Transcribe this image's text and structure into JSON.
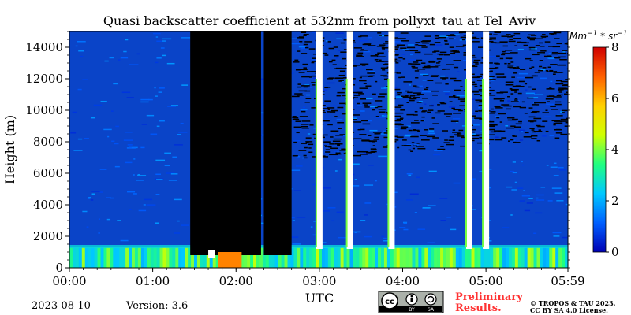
{
  "chart_data": {
    "type": "heatmap",
    "title": "Quasi backscatter coefficient at 532nm from pollyxt_tau at Tel_Aviv",
    "xlabel": "UTC",
    "ylabel": "Height (m)",
    "x_ticks": [
      "00:00",
      "01:00",
      "02:00",
      "03:00",
      "04:00",
      "05:00",
      "05:59"
    ],
    "x_range": [
      "00:00",
      "05:59"
    ],
    "y_ticks": [
      0,
      2000,
      4000,
      6000,
      8000,
      10000,
      12000,
      14000
    ],
    "ylim": [
      0,
      15000
    ],
    "colorbar": {
      "unit": "Mm^-1 * sr^-1",
      "ticks": [
        0,
        2,
        4,
        6,
        8
      ],
      "range": [
        0,
        8
      ],
      "colors": [
        "#0000b4",
        "#0060ff",
        "#00c8ff",
        "#20ff80",
        "#d0ff00",
        "#ffd000",
        "#ff6000",
        "#d00000"
      ]
    },
    "background_value": 1.0,
    "boundary_layer_top_m": 1300,
    "no_data_intervals": [
      {
        "start": "01:27",
        "end": "02:18",
        "note": "clouds/black"
      },
      {
        "start": "02:20",
        "end": "02:40",
        "note": "black"
      }
    ],
    "cloud_columns": [
      {
        "time": "03:00",
        "note": "white column"
      },
      {
        "time": "03:22",
        "note": "white column"
      },
      {
        "time": "03:52",
        "note": "white column"
      },
      {
        "time": "04:48",
        "note": "white column"
      },
      {
        "time": "05:00",
        "note": "white column"
      }
    ]
  },
  "footer": {
    "date": "2023-08-10",
    "version": "Version: 3.6",
    "preliminary_line1": "Preliminary",
    "preliminary_line2": "Results.",
    "copyright_line1": "© TROPOS & TAU 2023.",
    "copyright_line2": "CC BY SA 4.0 License."
  },
  "license_badge": {
    "label_by": "BY",
    "label_sa": "SA"
  }
}
